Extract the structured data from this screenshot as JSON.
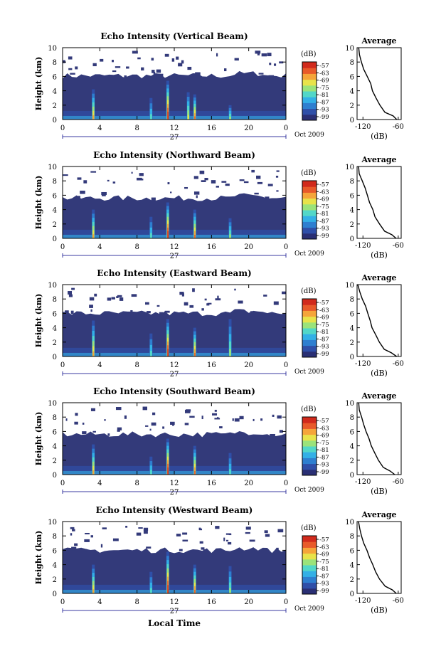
{
  "colors": {
    "background_echo": "#333a7a",
    "colorbar": [
      "#2a2f74",
      "#2f4fa8",
      "#2e7fd0",
      "#33b0e6",
      "#52d7c8",
      "#9be37a",
      "#e8e34a",
      "#f5a53a",
      "#e85a2a",
      "#d12a1c"
    ]
  },
  "x_axis_title": "Local Time",
  "chart_data": [
    {
      "type": "heatmap",
      "title": "Echo Intensity (Vertical Beam)",
      "ylabel": "Height (km)",
      "ylim": [
        0,
        10
      ],
      "yticks": [
        "0",
        "2",
        "4",
        "6",
        "8",
        "10"
      ],
      "xlim": [
        0,
        24
      ],
      "xticks": [
        "0",
        "4",
        "8",
        "12",
        "16",
        "20",
        "0"
      ],
      "date_center": "27",
      "date_right": "Oct 2009",
      "colorbar": {
        "unit": "(dB)",
        "ticks": [
          "-57",
          "-63",
          "-69",
          "-75",
          "-81",
          "-87",
          "-93",
          "-99"
        ]
      },
      "profile": {
        "title": "Average",
        "xlabel": "(dB)",
        "xticks": [
          "-120",
          "-60"
        ],
        "xlim": [
          -130,
          -55
        ],
        "ylim": [
          0,
          10
        ],
        "points": [
          [
            -128,
            10
          ],
          [
            -125,
            9
          ],
          [
            -122,
            8
          ],
          [
            -118,
            7
          ],
          [
            -112,
            6
          ],
          [
            -106,
            5
          ],
          [
            -103,
            4
          ],
          [
            -98,
            3
          ],
          [
            -92,
            2
          ],
          [
            -82,
            1
          ],
          [
            -68,
            0.5
          ],
          [
            -62,
            0
          ]
        ]
      },
      "echo_top_km": 6.1,
      "spikes": [
        {
          "hour": 3.3,
          "top_km": 4.2,
          "strength": 0.7
        },
        {
          "hour": 11.3,
          "top_km": 5.4,
          "strength": 1.0
        },
        {
          "hour": 13.5,
          "top_km": 3.8,
          "strength": 0.6
        },
        {
          "hour": 14.2,
          "top_km": 3.5,
          "strength": 0.75
        },
        {
          "hour": 18,
          "top_km": 2.0,
          "strength": 0.4
        },
        {
          "hour": 9.5,
          "top_km": 3.0,
          "strength": 0.35
        }
      ]
    },
    {
      "type": "heatmap",
      "title": "Echo Intensity (Northward Beam)",
      "ylabel": "Height (km)",
      "ylim": [
        0,
        10
      ],
      "yticks": [
        "0",
        "2",
        "4",
        "6",
        "8",
        "10"
      ],
      "xlim": [
        0,
        24
      ],
      "xticks": [
        "0",
        "4",
        "8",
        "12",
        "16",
        "20",
        "0"
      ],
      "date_center": "27",
      "date_right": "Oct 2009",
      "colorbar": {
        "unit": "(dB)",
        "ticks": [
          "-57",
          "-63",
          "-69",
          "-75",
          "-81",
          "-87",
          "-93",
          "-99"
        ]
      },
      "profile": {
        "title": "Average",
        "xlabel": "(dB)",
        "xticks": [
          "-120",
          "-60"
        ],
        "xlim": [
          -130,
          -55
        ],
        "ylim": [
          0,
          10
        ],
        "points": [
          [
            -128,
            10
          ],
          [
            -126,
            9
          ],
          [
            -121,
            8
          ],
          [
            -117,
            7
          ],
          [
            -113,
            6
          ],
          [
            -108,
            5
          ],
          [
            -104,
            4
          ],
          [
            -99,
            3
          ],
          [
            -92,
            2
          ],
          [
            -83,
            1
          ],
          [
            -70,
            0.5
          ],
          [
            -63,
            0
          ]
        ]
      },
      "echo_top_km": 5.6,
      "spikes": [
        {
          "hour": 3.3,
          "top_km": 4.0,
          "strength": 0.7
        },
        {
          "hour": 11.3,
          "top_km": 5.0,
          "strength": 1.0
        },
        {
          "hour": 14.2,
          "top_km": 4.0,
          "strength": 0.8
        },
        {
          "hour": 18,
          "top_km": 2.8,
          "strength": 0.4
        },
        {
          "hour": 9.5,
          "top_km": 3.0,
          "strength": 0.35
        }
      ]
    },
    {
      "type": "heatmap",
      "title": "Echo Intensity (Eastward Beam)",
      "ylabel": "Height (km)",
      "ylim": [
        0,
        10
      ],
      "yticks": [
        "0",
        "2",
        "4",
        "6",
        "8",
        "10"
      ],
      "xlim": [
        0,
        24
      ],
      "xticks": [
        "0",
        "4",
        "8",
        "12",
        "16",
        "20",
        "0"
      ],
      "date_center": "27",
      "date_right": "Oct 2009",
      "colorbar": {
        "unit": "(dB)",
        "ticks": [
          "-57",
          "-63",
          "-69",
          "-75",
          "-81",
          "-87",
          "-93",
          "-99"
        ]
      },
      "profile": {
        "title": "Average",
        "xlabel": "(dB)",
        "xticks": [
          "-120",
          "-60"
        ],
        "xlim": [
          -130,
          -55
        ],
        "ylim": [
          0,
          10
        ],
        "points": [
          [
            -128,
            10
          ],
          [
            -125,
            9
          ],
          [
            -121,
            8
          ],
          [
            -116,
            7
          ],
          [
            -112,
            6
          ],
          [
            -108,
            5
          ],
          [
            -104,
            4
          ],
          [
            -99,
            3
          ],
          [
            -93,
            2
          ],
          [
            -84,
            1
          ],
          [
            -72,
            0.5
          ],
          [
            -62,
            0
          ]
        ]
      },
      "echo_top_km": 6.0,
      "spikes": [
        {
          "hour": 3.3,
          "top_km": 5.0,
          "strength": 0.7
        },
        {
          "hour": 11.3,
          "top_km": 5.2,
          "strength": 1.0
        },
        {
          "hour": 14.2,
          "top_km": 4.0,
          "strength": 0.8
        },
        {
          "hour": 18,
          "top_km": 5.2,
          "strength": 0.45
        },
        {
          "hour": 9.5,
          "top_km": 3.2,
          "strength": 0.35
        }
      ]
    },
    {
      "type": "heatmap",
      "title": "Echo Intensity (Southward Beam)",
      "ylabel": "Height (km)",
      "ylim": [
        0,
        10
      ],
      "yticks": [
        "0",
        "2",
        "4",
        "6",
        "8",
        "10"
      ],
      "xlim": [
        0,
        24
      ],
      "xticks": [
        "0",
        "4",
        "8",
        "12",
        "16",
        "20",
        "0"
      ],
      "date_center": "27",
      "date_right": "Oct 2009",
      "colorbar": {
        "unit": "(dB)",
        "ticks": [
          "-57",
          "-63",
          "-69",
          "-75",
          "-81",
          "-87",
          "-93",
          "-99"
        ]
      },
      "profile": {
        "title": "Average",
        "xlabel": "(dB)",
        "xticks": [
          "-120",
          "-60"
        ],
        "xlim": [
          -130,
          -55
        ],
        "ylim": [
          0,
          10
        ],
        "points": [
          [
            -128,
            10
          ],
          [
            -126,
            9
          ],
          [
            -122,
            8
          ],
          [
            -118,
            7
          ],
          [
            -114,
            6
          ],
          [
            -109,
            5
          ],
          [
            -105,
            4
          ],
          [
            -100,
            3
          ],
          [
            -94,
            2
          ],
          [
            -85,
            1
          ],
          [
            -73,
            0.5
          ],
          [
            -65,
            0
          ]
        ]
      },
      "echo_top_km": 5.6,
      "spikes": [
        {
          "hour": 3.3,
          "top_km": 4.2,
          "strength": 0.65
        },
        {
          "hour": 11.3,
          "top_km": 5.0,
          "strength": 0.95
        },
        {
          "hour": 14.2,
          "top_km": 4.0,
          "strength": 0.75
        },
        {
          "hour": 18,
          "top_km": 3.0,
          "strength": 0.35
        },
        {
          "hour": 9.5,
          "top_km": 2.5,
          "strength": 0.3
        }
      ]
    },
    {
      "type": "heatmap",
      "title": "Echo Intensity (Westward Beam)",
      "ylabel": "Height (km)",
      "ylim": [
        0,
        10
      ],
      "yticks": [
        "0",
        "2",
        "4",
        "6",
        "8",
        "10"
      ],
      "xlim": [
        0,
        24
      ],
      "xticks": [
        "0",
        "4",
        "8",
        "12",
        "16",
        "20",
        "0"
      ],
      "date_center": "27",
      "date_right": "Oct 2009",
      "colorbar": {
        "unit": "(dB)",
        "ticks": [
          "-57",
          "-63",
          "-69",
          "-75",
          "-81",
          "-87",
          "-93",
          "-99"
        ]
      },
      "profile": {
        "title": "Average",
        "xlabel": "(dB)",
        "xticks": [
          "-120",
          "-60"
        ],
        "xlim": [
          -130,
          -55
        ],
        "ylim": [
          0,
          10
        ],
        "points": [
          [
            -128,
            10
          ],
          [
            -126,
            9
          ],
          [
            -122,
            8
          ],
          [
            -118,
            7
          ],
          [
            -113,
            6
          ],
          [
            -108,
            5
          ],
          [
            -104,
            4
          ],
          [
            -99,
            3
          ],
          [
            -92,
            2
          ],
          [
            -83,
            1
          ],
          [
            -71,
            0.5
          ],
          [
            -64,
            0
          ]
        ]
      },
      "echo_top_km": 6.0,
      "spikes": [
        {
          "hour": 3.3,
          "top_km": 4.0,
          "strength": 0.65
        },
        {
          "hour": 11.3,
          "top_km": 5.8,
          "strength": 1.0
        },
        {
          "hour": 14.2,
          "top_km": 4.0,
          "strength": 0.8
        },
        {
          "hour": 18,
          "top_km": 3.8,
          "strength": 0.4
        },
        {
          "hour": 9.5,
          "top_km": 3.0,
          "strength": 0.35
        }
      ]
    }
  ]
}
